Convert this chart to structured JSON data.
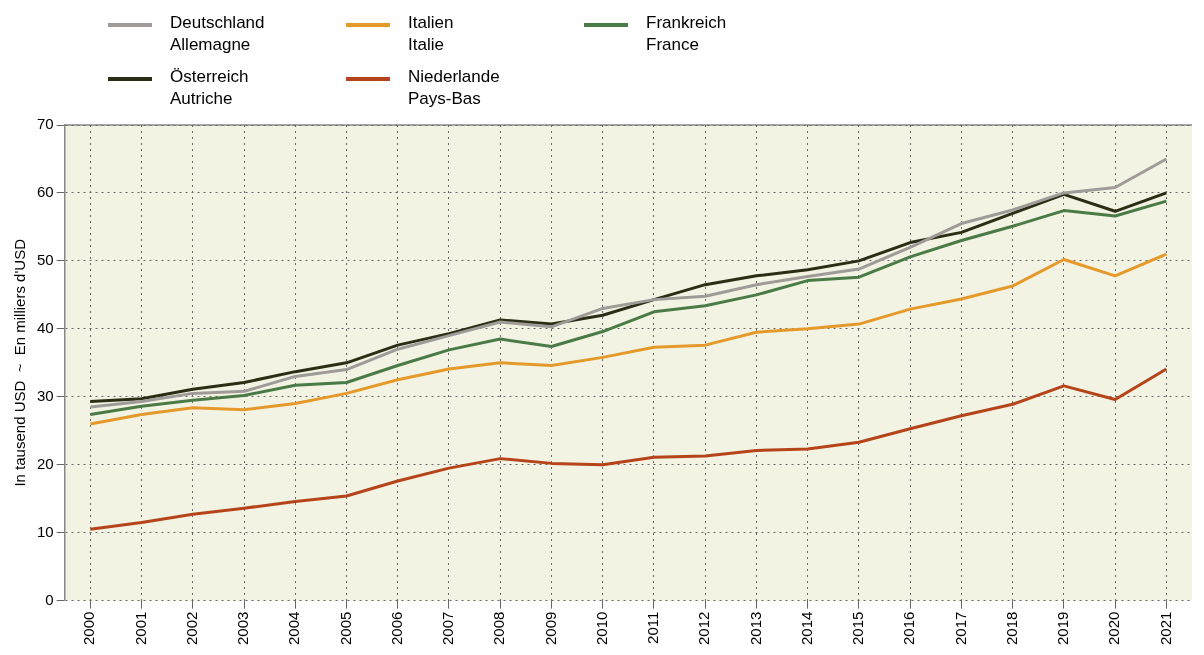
{
  "chart_data": {
    "type": "line",
    "ylabel": "In tausend USD  ~  En milliers d'USD",
    "categories": [
      "2000",
      "2001",
      "2002",
      "2003",
      "2004",
      "2005",
      "2006",
      "2007",
      "2008",
      "2009",
      "2010",
      "2011",
      "2012",
      "2013",
      "2014",
      "2015",
      "2016",
      "2017",
      "2018",
      "2019",
      "2020",
      "2021"
    ],
    "series": [
      {
        "name": "Deutschland\nAllemagne",
        "color": "#a09a98",
        "values": [
          28.5,
          29.3,
          30.5,
          30.8,
          33,
          34,
          37,
          39,
          41,
          40.3,
          43,
          44.3,
          44.8,
          46.5,
          47.7,
          48.8,
          52,
          55.5,
          57.5,
          60,
          60.8,
          65
        ]
      },
      {
        "name": "Österreich\nAutriche",
        "color": "#2b2d14",
        "values": [
          29.3,
          29.7,
          31.1,
          32.1,
          33.7,
          35,
          37.6,
          39.3,
          41.3,
          40.7,
          42,
          44.3,
          46.5,
          47.8,
          48.7,
          50,
          52.7,
          54.2,
          57,
          59.8,
          57.3,
          60
        ]
      },
      {
        "name": "Italien\nItalie",
        "color": "#e6992b",
        "values": [
          26,
          27.4,
          28.4,
          28.1,
          29,
          30.5,
          32.5,
          34.1,
          35,
          34.6,
          35.8,
          37.3,
          37.6,
          39.5,
          40,
          40.7,
          42.9,
          44.4,
          46.3,
          50.2,
          47.8,
          51
        ]
      },
      {
        "name": "Niederlande\nPays-Bas",
        "color": "#b5441a",
        "values": [
          10.5,
          11.5,
          12.7,
          13.6,
          14.6,
          15.4,
          17.6,
          19.5,
          20.9,
          20.2,
          20,
          21.1,
          21.3,
          22.1,
          22.3,
          23.3,
          25.3,
          27.2,
          28.9,
          31.6,
          29.6,
          34.1
        ]
      },
      {
        "name": "Frankreich\nFrance",
        "color": "#4a7a45",
        "values": [
          27.4,
          28.6,
          29.5,
          30.2,
          31.7,
          32.1,
          34.6,
          36.9,
          38.5,
          37.4,
          39.6,
          42.5,
          43.4,
          45,
          47.1,
          47.6,
          50.6,
          53,
          55.1,
          57.4,
          56.6,
          58.8
        ]
      }
    ],
    "ylim": [
      0,
      70
    ],
    "yticks": [
      0,
      10,
      20,
      30,
      40,
      50,
      60,
      70
    ],
    "grid": true,
    "legend": "top left",
    "marker": "none",
    "line_style": "solid"
  }
}
